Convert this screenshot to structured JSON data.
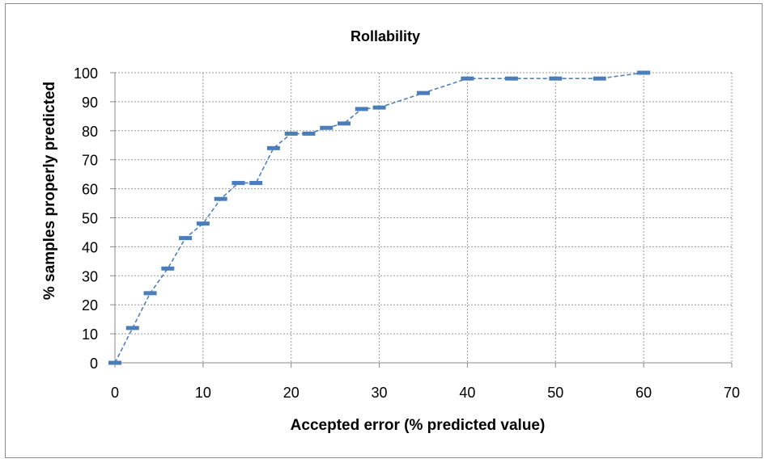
{
  "chart_data": {
    "type": "line",
    "title": "Rollability",
    "xlabel": "Accepted error (% predicted value)",
    "ylabel": "% samples properly predicted",
    "xlim": [
      0,
      70
    ],
    "ylim": [
      0,
      100
    ],
    "xticks": [
      0,
      10,
      20,
      30,
      40,
      50,
      60,
      70
    ],
    "yticks": [
      0,
      10,
      20,
      30,
      40,
      50,
      60,
      70,
      80,
      90,
      100
    ],
    "grid": true,
    "marker": "dash",
    "line_style": "dashed",
    "color": "#4f81bd",
    "marker_color": "#4a7ebb",
    "series": [
      {
        "x": [
          0,
          2,
          4,
          6,
          8,
          10,
          12,
          14,
          16,
          18,
          20,
          22,
          24,
          26,
          28,
          30,
          35,
          40,
          45,
          50,
          55,
          60
        ],
        "y": [
          0,
          12,
          24,
          32.5,
          43,
          48,
          56.5,
          62,
          62,
          74,
          79,
          79,
          81,
          82.5,
          87.5,
          88,
          93,
          98,
          98,
          98,
          98,
          100
        ]
      }
    ]
  }
}
